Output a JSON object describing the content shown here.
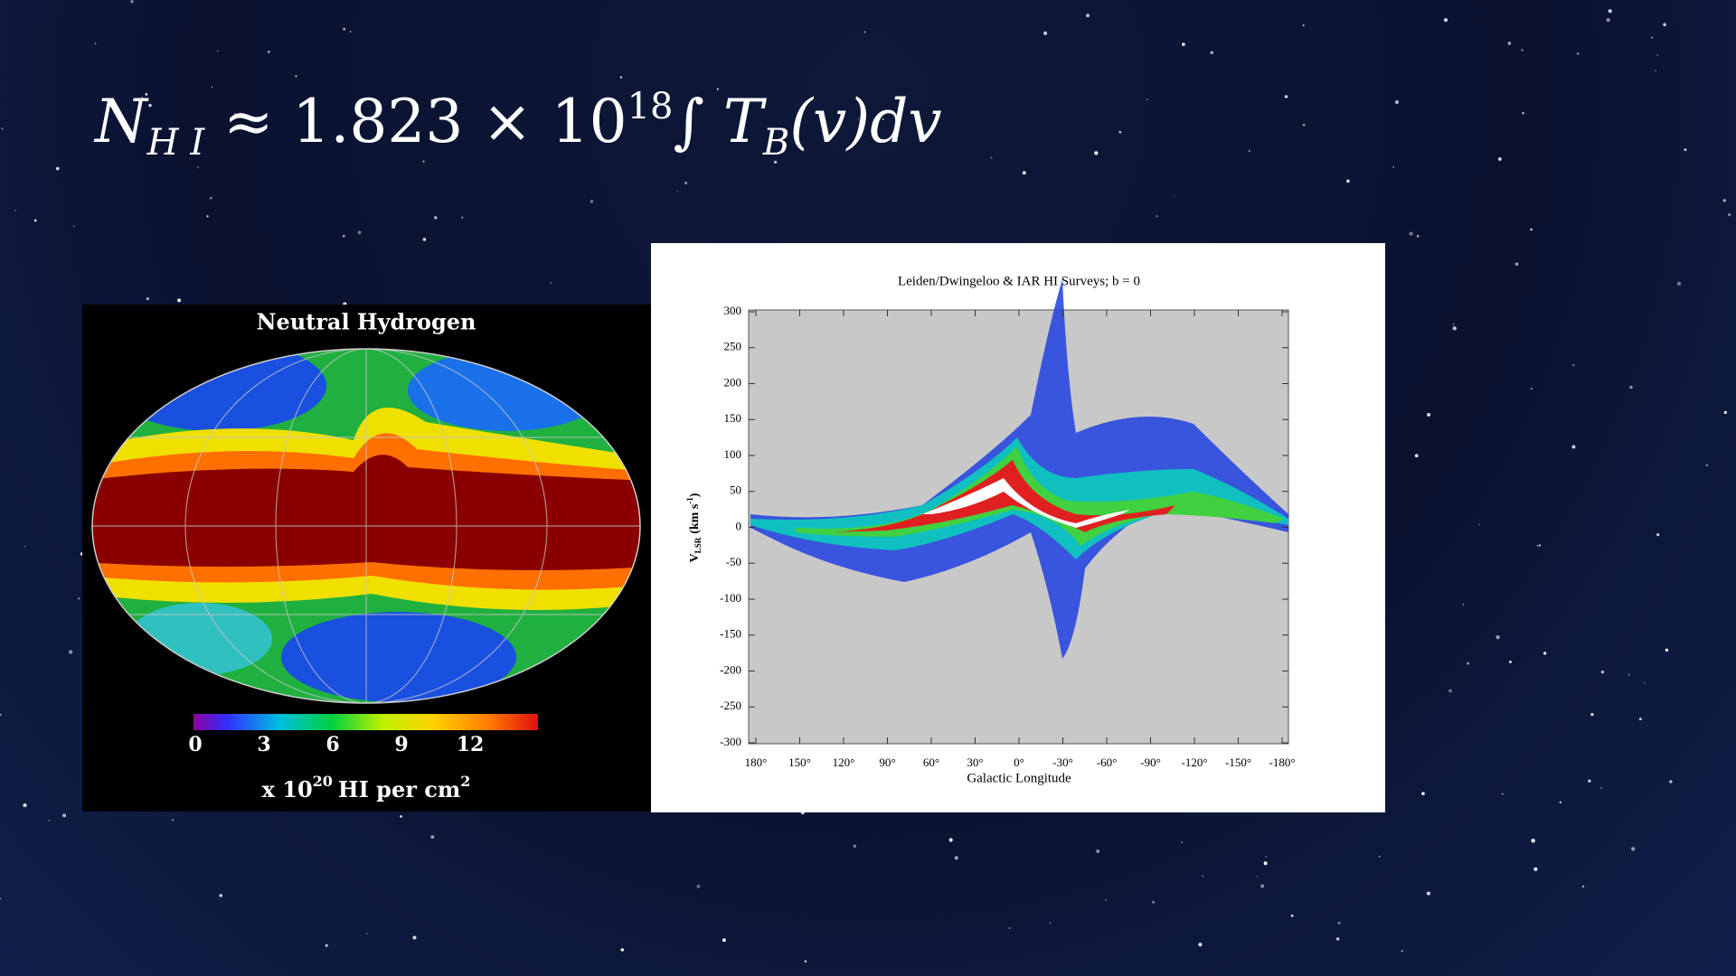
{
  "equation": {
    "n": "N",
    "n_sub": "H I",
    "middle": "≈ 1.823 × 10",
    "exp": "18",
    "integral": "∫ T",
    "t_sub": "B",
    "tail": "(v)dv"
  },
  "left_image": {
    "title": "Neutral Hydrogen",
    "colorbar_ticks": [
      0,
      3,
      6,
      9,
      12
    ],
    "unit_label": {
      "prefix": "x 10",
      "exp": "20",
      "middle": "HI per cm",
      "power": "2"
    }
  },
  "right_image": {
    "title": "Leiden/Dwingeloo & IAR HI Surveys;  b = 0",
    "yticks": [
      300,
      250,
      200,
      150,
      100,
      50,
      0,
      -50,
      -100,
      -150,
      -200,
      -250,
      -300
    ],
    "xticks": [
      "180°",
      "150°",
      "120°",
      "90°",
      "60°",
      "30°",
      "0°",
      "-30°",
      "-60°",
      "-90°",
      "-120°",
      "-150°",
      "-180°"
    ],
    "xlabel": "Galactic Longitude",
    "ylabel": {
      "v": "V",
      "sub": "LSR",
      "unit": "(km s",
      "sup": "-1",
      "close": ")"
    }
  }
}
